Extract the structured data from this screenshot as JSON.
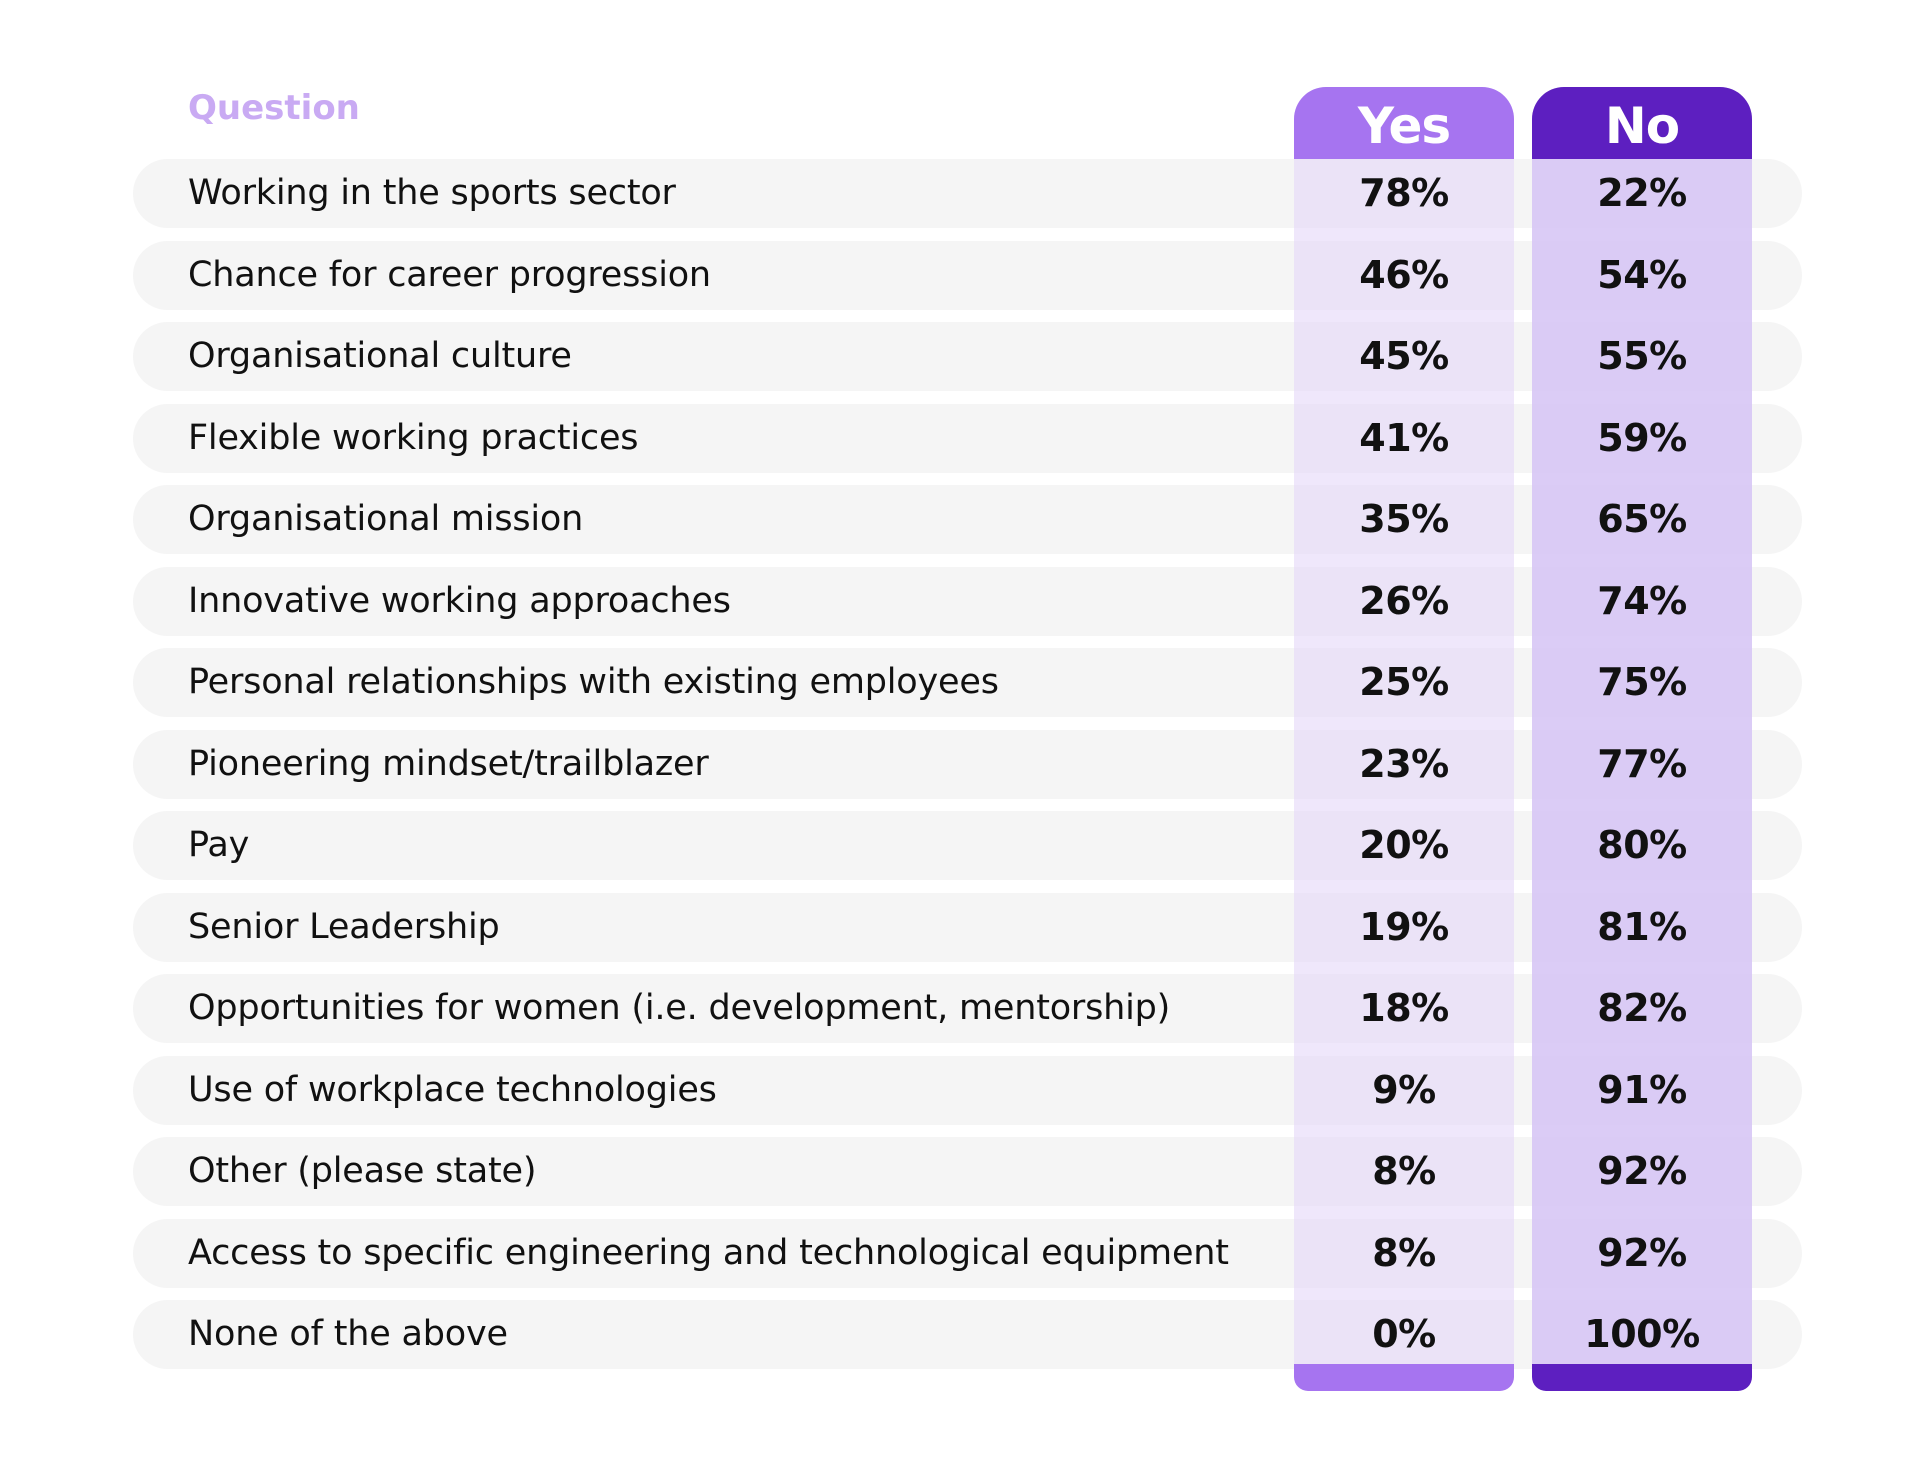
{
  "chart_data": {
    "type": "table",
    "header": {
      "question_label": "Question",
      "yes_label": "Yes",
      "no_label": "No"
    },
    "colors": {
      "yes_accent": "#a674f0",
      "no_accent": "#5d1fc0",
      "header_label": "#c9aaf3",
      "row_background": "#f5f5f5"
    },
    "rows": [
      {
        "question": "Working in the sports sector",
        "yes": "78%",
        "no": "22%"
      },
      {
        "question": "Chance for career progression",
        "yes": "46%",
        "no": "54%"
      },
      {
        "question": "Organisational culture",
        "yes": "45%",
        "no": "55%"
      },
      {
        "question": "Flexible working practices",
        "yes": "41%",
        "no": "59%"
      },
      {
        "question": "Organisational mission",
        "yes": "35%",
        "no": "65%"
      },
      {
        "question": "Innovative working approaches",
        "yes": "26%",
        "no": "74%"
      },
      {
        "question": "Personal relationships with existing employees",
        "yes": "25%",
        "no": "75%"
      },
      {
        "question": "Pioneering mindset/trailblazer",
        "yes": "23%",
        "no": "77%"
      },
      {
        "question": "Pay",
        "yes": "20%",
        "no": "80%"
      },
      {
        "question": "Senior Leadership",
        "yes": "19%",
        "no": "81%"
      },
      {
        "question": "Opportunities for women (i.e. development, mentorship)",
        "yes": "18%",
        "no": "82%"
      },
      {
        "question": "Use of workplace technologies",
        "yes": "9%",
        "no": "91%"
      },
      {
        "question": "Other (please state)",
        "yes": "8%",
        "no": "92%"
      },
      {
        "question": "Access to specific engineering and technological equipment",
        "yes": "8%",
        "no": "92%"
      },
      {
        "question": "None of the above",
        "yes": "0%",
        "no": "100%"
      }
    ]
  }
}
